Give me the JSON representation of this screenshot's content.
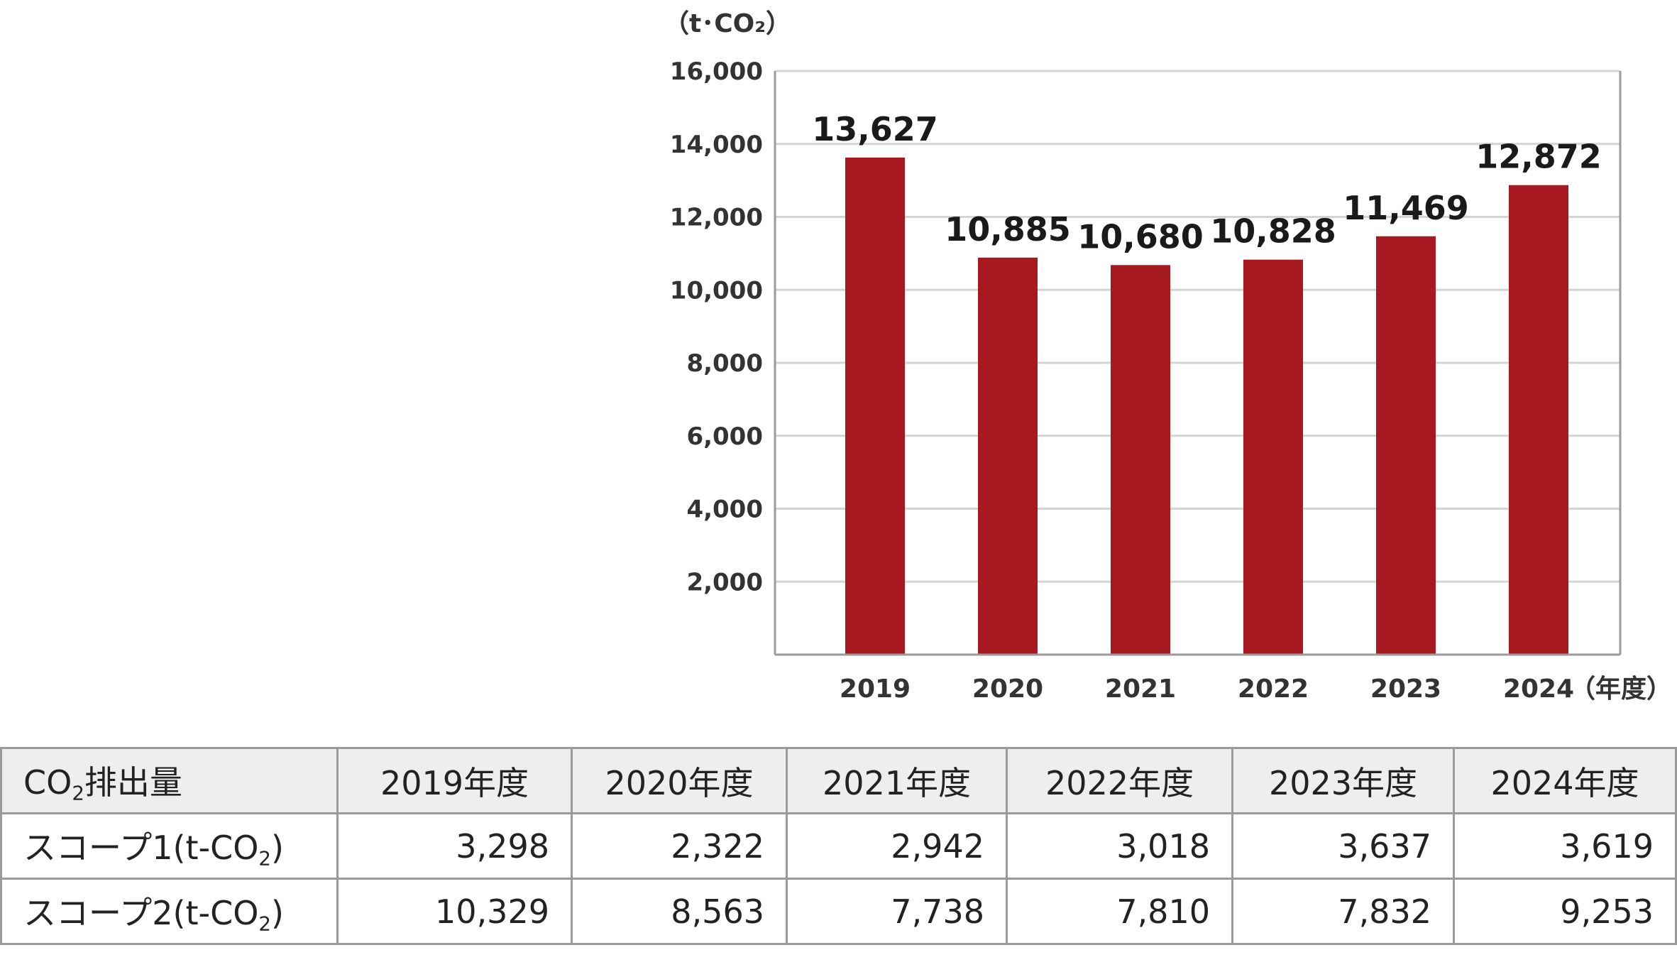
{
  "chart_data": {
    "type": "bar",
    "unit_label": "（t･CO₂）",
    "x_unit_label": "（年度）",
    "categories": [
      "2019",
      "2020",
      "2021",
      "2022",
      "2023",
      "2024"
    ],
    "values": [
      13627,
      10885,
      10680,
      10828,
      11469,
      12872
    ],
    "data_labels": [
      "13,627",
      "10,885",
      "10,680",
      "10,828",
      "11,469",
      "12,872"
    ],
    "yticks": [
      2000,
      4000,
      6000,
      8000,
      10000,
      12000,
      14000,
      16000
    ],
    "ytick_labels": [
      "2,000",
      "4,000",
      "6,000",
      "8,000",
      "10,000",
      "12,000",
      "14,000",
      "16,000"
    ],
    "ylim": [
      0,
      16000
    ],
    "grid": true,
    "bar_color": "#a61920"
  },
  "table": {
    "header_label_main": "CO",
    "header_label_sub": "2",
    "header_label_rest": "排出量",
    "columns": [
      "2019年度",
      "2020年度",
      "2021年度",
      "2022年度",
      "2023年度",
      "2024年度"
    ],
    "rows": [
      {
        "label_main": "スコープ1(t-CO",
        "label_sub": "2",
        "label_end": ")",
        "values": [
          "3,298",
          "2,322",
          "2,942",
          "3,018",
          "3,637",
          "3,619"
        ]
      },
      {
        "label_main": "スコープ2(t-CO",
        "label_sub": "2",
        "label_end": ")",
        "values": [
          "10,329",
          "8,563",
          "7,738",
          "7,810",
          "7,832",
          "9,253"
        ]
      }
    ]
  }
}
